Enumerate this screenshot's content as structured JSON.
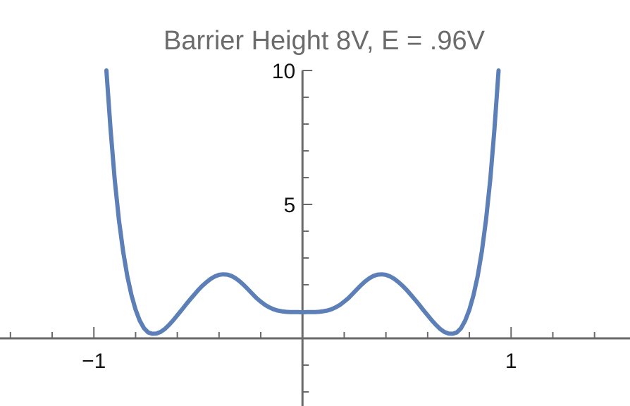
{
  "chart_data": {
    "type": "line",
    "title": "Barrier Height 8V, E = .96V",
    "xlabel": "",
    "ylabel": "",
    "xlim": [
      -1.45,
      1.57
    ],
    "ylim": [
      -2.5,
      10
    ],
    "x_ticks": [
      {
        "value": -1,
        "label": "−1"
      },
      {
        "value": 1,
        "label": "1"
      }
    ],
    "y_ticks": [
      {
        "value": 5,
        "label": "5"
      },
      {
        "value": 10,
        "label": "10"
      }
    ],
    "grid": false,
    "series": [
      {
        "color": "#5b7fb6",
        "x": [
          -0.94,
          -0.92,
          -0.9,
          -0.88,
          -0.86,
          -0.84,
          -0.82,
          -0.8,
          -0.78,
          -0.76,
          -0.74,
          -0.72,
          -0.7,
          -0.68,
          -0.66,
          -0.64,
          -0.62,
          -0.6,
          -0.58,
          -0.56,
          -0.54,
          -0.52,
          -0.5,
          -0.48,
          -0.46,
          -0.44,
          -0.42,
          -0.4,
          -0.38,
          -0.36,
          -0.34,
          -0.32,
          -0.3,
          -0.28,
          -0.26,
          -0.24,
          -0.22,
          -0.2,
          -0.18,
          -0.16,
          -0.14,
          -0.12,
          -0.1,
          -0.08,
          -0.06,
          -0.04,
          -0.02,
          0.0,
          0.02,
          0.04,
          0.06,
          0.08,
          0.1,
          0.12,
          0.14,
          0.16,
          0.18,
          0.2,
          0.22,
          0.24,
          0.26,
          0.28,
          0.3,
          0.32,
          0.34,
          0.36,
          0.38,
          0.4,
          0.42,
          0.44,
          0.46,
          0.48,
          0.5,
          0.52,
          0.54,
          0.56,
          0.58,
          0.6,
          0.62,
          0.64,
          0.66,
          0.68,
          0.7,
          0.72,
          0.74,
          0.76,
          0.78,
          0.8,
          0.82,
          0.84,
          0.86,
          0.88,
          0.9,
          0.92,
          0.94
        ],
        "y": [
          10.0,
          7.8,
          5.92,
          4.43,
          3.25,
          2.33,
          1.62,
          1.07,
          0.66,
          0.38,
          0.22,
          0.17,
          0.18,
          0.24,
          0.35,
          0.5,
          0.67,
          0.86,
          1.05,
          1.25,
          1.44,
          1.62,
          1.8,
          1.96,
          2.1,
          2.22,
          2.31,
          2.37,
          2.39,
          2.38,
          2.33,
          2.24,
          2.12,
          1.98,
          1.82,
          1.66,
          1.5,
          1.37,
          1.25,
          1.16,
          1.09,
          1.04,
          1.01,
          0.99,
          0.98,
          0.98,
          0.98,
          0.97,
          0.98,
          0.98,
          0.98,
          0.99,
          1.01,
          1.04,
          1.09,
          1.16,
          1.25,
          1.37,
          1.5,
          1.66,
          1.82,
          1.98,
          2.12,
          2.24,
          2.33,
          2.38,
          2.39,
          2.37,
          2.31,
          2.22,
          2.1,
          1.96,
          1.8,
          1.62,
          1.44,
          1.25,
          1.05,
          0.86,
          0.67,
          0.5,
          0.35,
          0.24,
          0.18,
          0.17,
          0.22,
          0.38,
          0.66,
          1.07,
          1.62,
          2.33,
          3.25,
          4.43,
          5.92,
          7.8,
          10.0
        ]
      }
    ]
  }
}
